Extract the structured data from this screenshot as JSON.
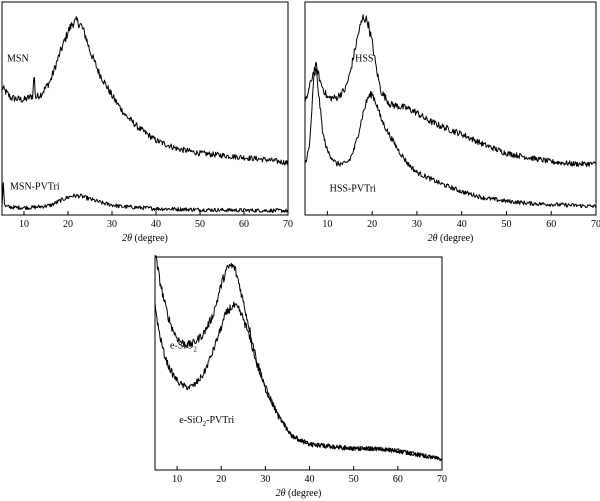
{
  "chart_data": [
    {
      "type": "line",
      "xlabel_prefix": "2θ",
      "xlabel_suffix": " (degree)",
      "xlim": [
        5,
        70
      ],
      "xticks": [
        10,
        20,
        30,
        40,
        50,
        60,
        70
      ],
      "ylim": [
        0,
        1
      ],
      "y_axis_labels": "none",
      "grid": false,
      "series": [
        {
          "name": "MSN",
          "x": [
            5,
            7,
            10,
            12,
            12.3,
            12.6,
            14,
            16,
            18,
            20,
            21,
            22,
            23,
            24,
            25,
            27,
            30,
            33,
            36,
            40,
            45,
            50,
            55,
            60,
            65,
            70
          ],
          "y": [
            0.6,
            0.55,
            0.54,
            0.56,
            0.67,
            0.55,
            0.57,
            0.63,
            0.75,
            0.86,
            0.9,
            0.91,
            0.89,
            0.84,
            0.77,
            0.67,
            0.56,
            0.47,
            0.41,
            0.35,
            0.31,
            0.29,
            0.28,
            0.27,
            0.26,
            0.245
          ]
        },
        {
          "name": "MSN-PVTri",
          "x": [
            5,
            5.3,
            5.6,
            8,
            12,
            16,
            19,
            21,
            22,
            23,
            25,
            28,
            32,
            40,
            50,
            60,
            70
          ],
          "y": [
            0.04,
            0.16,
            0.04,
            0.035,
            0.035,
            0.045,
            0.075,
            0.09,
            0.09,
            0.088,
            0.075,
            0.055,
            0.04,
            0.03,
            0.025,
            0.022,
            0.02
          ]
        }
      ]
    },
    {
      "type": "line",
      "xlabel_prefix": "2θ",
      "xlabel_suffix": " (degree)",
      "xlim": [
        5,
        70
      ],
      "xticks": [
        10,
        20,
        30,
        40,
        50,
        60,
        70
      ],
      "ylim": [
        0,
        1
      ],
      "y_axis_labels": "none",
      "grid": false,
      "series": [
        {
          "name": "HSS",
          "x": [
            5,
            6,
            7,
            7.5,
            8.5,
            10,
            12,
            14,
            15,
            16,
            17,
            18,
            19,
            20,
            21,
            22,
            24,
            26,
            28,
            30,
            32,
            35,
            40,
            45,
            50,
            55,
            60,
            65,
            70
          ],
          "y": [
            0.52,
            0.6,
            0.68,
            0.7,
            0.62,
            0.55,
            0.55,
            0.59,
            0.66,
            0.76,
            0.86,
            0.93,
            0.91,
            0.81,
            0.68,
            0.58,
            0.52,
            0.51,
            0.5,
            0.48,
            0.45,
            0.42,
            0.38,
            0.33,
            0.29,
            0.27,
            0.25,
            0.24,
            0.24
          ]
        },
        {
          "name": "HSS-PVTri",
          "x": [
            5,
            6,
            7,
            7.5,
            8,
            9,
            10,
            12,
            14,
            15,
            16,
            17,
            18,
            19,
            20,
            21,
            22,
            24,
            26,
            28,
            30,
            35,
            40,
            45,
            50,
            55,
            60,
            65,
            70
          ],
          "y": [
            0.24,
            0.32,
            0.65,
            0.68,
            0.58,
            0.38,
            0.3,
            0.24,
            0.24,
            0.26,
            0.31,
            0.39,
            0.48,
            0.55,
            0.57,
            0.52,
            0.45,
            0.37,
            0.3,
            0.24,
            0.2,
            0.15,
            0.11,
            0.08,
            0.065,
            0.055,
            0.05,
            0.045,
            0.04
          ]
        }
      ]
    },
    {
      "type": "line",
      "xlabel_prefix": "2θ",
      "xlabel_suffix": " (degree)",
      "xlim": [
        5,
        70
      ],
      "xticks": [
        10,
        20,
        30,
        40,
        50,
        60,
        70
      ],
      "ylim": [
        0,
        1
      ],
      "y_axis_labels": "none",
      "grid": false,
      "series": [
        {
          "name": "e-SiO",
          "name_sub": "2",
          "x": [
            5,
            6,
            7,
            8,
            9,
            10,
            11,
            12,
            13,
            14,
            16,
            18,
            19,
            20,
            21,
            22,
            23,
            24,
            25,
            26,
            27,
            28,
            30,
            33,
            36,
            40,
            45,
            50,
            55,
            60,
            65,
            70
          ],
          "y": [
            1.02,
            0.9,
            0.8,
            0.72,
            0.66,
            0.62,
            0.6,
            0.59,
            0.59,
            0.6,
            0.64,
            0.72,
            0.79,
            0.87,
            0.93,
            0.96,
            0.95,
            0.88,
            0.79,
            0.7,
            0.61,
            0.52,
            0.39,
            0.25,
            0.16,
            0.12,
            0.11,
            0.1,
            0.1,
            0.09,
            0.07,
            0.05
          ]
        },
        {
          "name": "e-SiO",
          "name_sub": "2",
          "name_tail": "-PVTri",
          "x": [
            5,
            6,
            7,
            8,
            9,
            10,
            11,
            12,
            13,
            14,
            16,
            18,
            20,
            21,
            22,
            23,
            24,
            25,
            26,
            27,
            28,
            30,
            33,
            36,
            40,
            45,
            50,
            55,
            60,
            65,
            70
          ],
          "y": [
            0.77,
            0.64,
            0.55,
            0.49,
            0.45,
            0.42,
            0.4,
            0.39,
            0.39,
            0.4,
            0.45,
            0.55,
            0.67,
            0.73,
            0.76,
            0.77,
            0.75,
            0.71,
            0.65,
            0.58,
            0.5,
            0.38,
            0.25,
            0.16,
            0.12,
            0.11,
            0.1,
            0.1,
            0.09,
            0.07,
            0.05
          ]
        }
      ]
    }
  ]
}
